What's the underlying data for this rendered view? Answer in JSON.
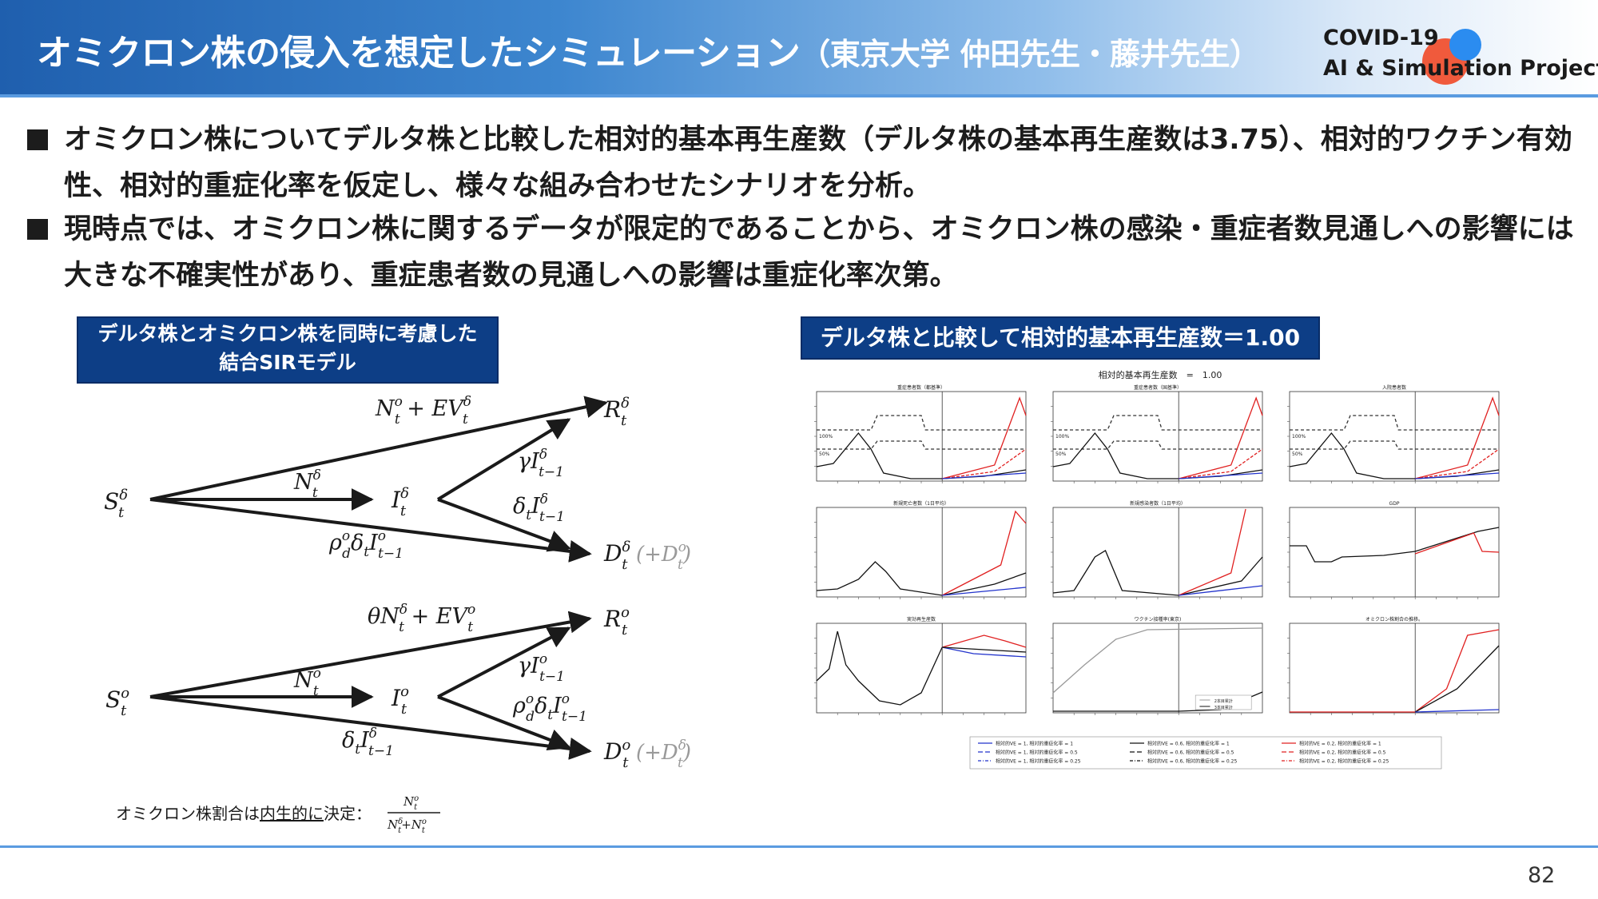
{
  "header": {
    "title": "オミクロン株の侵入を想定したシミュレーション",
    "title_paren": "（東京大学 仲田先生・藤井先生）",
    "logo_line1": "COVID-19",
    "logo_line2": "AI & Simulation Project"
  },
  "bullets": [
    "オミクロン株についてデルタ株と比較した相対的基本再生産数（デルタ株の基本再生産数は3.75）、相対的ワクチン有効性、相対的重症化率を仮定し、様々な組み合わせたシナリオを分析。",
    "現時点では、オミクロン株に関するデータが限定的であることから、オミクロン株の感染・重症者数見通しへの影響には大きな不確実性があり、重症患者数の見通しへの影響は重症化率次第。"
  ],
  "left_box": {
    "line1": "デルタ株とオミクロン株を同時に考慮した",
    "line2": "結合SIRモデル"
  },
  "right_box": "デルタ株と比較して相対的基本再生産数＝1.00",
  "omicron_note": {
    "prefix": "オミクロン株割合は",
    "underlined": "内生的に",
    "suffix": "決定："
  },
  "chart_header": "相対的基本再生産数　=　1.00",
  "panels": [
    {
      "title": "重症患者数（都基準）",
      "l100": "100%",
      "l50": "50%"
    },
    {
      "title": "重症患者数（国基準）",
      "l100": "100%",
      "l50": "50%"
    },
    {
      "title": "入院患者数",
      "l100": "100%",
      "l50": "50%"
    },
    {
      "title": "新規死亡者数（1日平均）"
    },
    {
      "title": "新規感染者数（1日平均）"
    },
    {
      "title": "GDP"
    },
    {
      "title": "実効再生産数"
    },
    {
      "title": "ワクチン接種率(東京)",
      "legend": [
        "2本目累計",
        "3本目累計"
      ]
    },
    {
      "title": "オミクロン株割合の推移。"
    }
  ],
  "chart_legend": [
    [
      "相対的VE = 1, 相対的重症化率 = 1",
      "相対的VE = 0.6, 相対的重症化率 = 1",
      "相対的VE = 0.2, 相対的重症化率 = 1"
    ],
    [
      "相対的VE = 1, 相対的重症化率 = 0.5",
      "相対的VE = 0.6, 相対的重症化率 = 0.5",
      "相対的VE = 0.2, 相対的重症化率 = 0.5"
    ],
    [
      "相対的VE = 1, 相対的重症化率 = 0.25",
      "相対的VE = 0.6, 相対的重症化率 = 0.25",
      "相対的VE = 0.2, 相対的重症化率 = 0.25"
    ]
  ],
  "colors": {
    "ve1": "#2233cc",
    "ve06": "#111111",
    "ve02": "#e02020",
    "vaccine": "#999999"
  },
  "page_number": "82"
}
